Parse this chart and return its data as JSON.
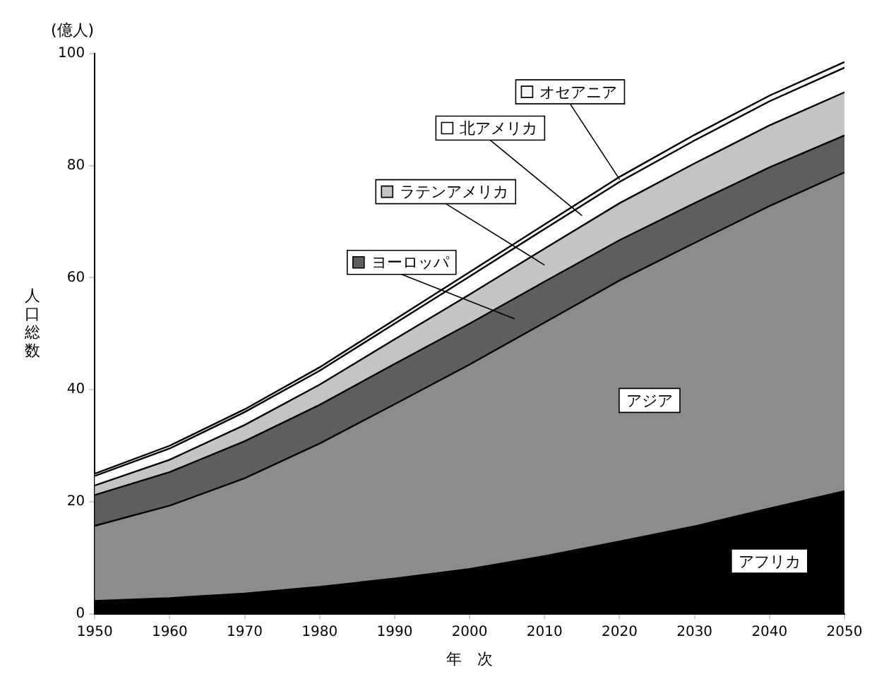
{
  "chart_data": {
    "type": "area",
    "stacked": true,
    "xlabel": "年　次",
    "ylabel": "人口総数",
    "annotations": [
      "(億人)"
    ],
    "x": [
      1950,
      1960,
      1970,
      1980,
      1990,
      2000,
      2010,
      2020,
      2030,
      2040,
      2050
    ],
    "xlim": [
      1950,
      2050
    ],
    "xticks": [
      1950,
      1960,
      1970,
      1980,
      1990,
      2000,
      2010,
      2020,
      2030,
      2040,
      2050
    ],
    "ylim": [
      0,
      100
    ],
    "yticks": [
      0,
      20,
      40,
      60,
      80,
      100
    ],
    "grid": false,
    "legend": "top",
    "series": [
      {
        "name": "アフリカ",
        "color": "#000000",
        "values": [
          2.3,
          2.8,
          3.6,
          4.8,
          6.3,
          8.0,
          10.3,
          12.9,
          15.6,
          18.8,
          21.9
        ]
      },
      {
        "name": "アジア",
        "color": "#8c8c8c",
        "values": [
          13.4,
          16.5,
          20.6,
          25.6,
          31.1,
          36.5,
          41.7,
          46.6,
          50.6,
          54.0,
          56.9
        ]
      },
      {
        "name": "ヨーロッパ",
        "color": "#5e5e5e",
        "values": [
          5.5,
          6.0,
          6.6,
          6.9,
          7.2,
          7.3,
          7.3,
          7.2,
          7.1,
          6.9,
          6.6
        ]
      },
      {
        "name": "ラテンアメリカ",
        "color": "#c4c4c4",
        "values": [
          1.7,
          2.2,
          2.9,
          3.6,
          4.4,
          5.2,
          5.9,
          6.6,
          7.1,
          7.5,
          7.7
        ]
      },
      {
        "name": "北アメリカ",
        "color": "#ffffff",
        "values": [
          1.7,
          2.0,
          2.3,
          2.5,
          2.8,
          3.2,
          3.5,
          3.8,
          4.1,
          4.3,
          4.4
        ]
      },
      {
        "name": "オセアニア",
        "color": "#f4f4f4",
        "values": [
          0.4,
          0.5,
          0.5,
          0.6,
          0.7,
          0.8,
          0.8,
          0.9,
          1.0,
          1.0,
          1.0
        ]
      }
    ]
  }
}
